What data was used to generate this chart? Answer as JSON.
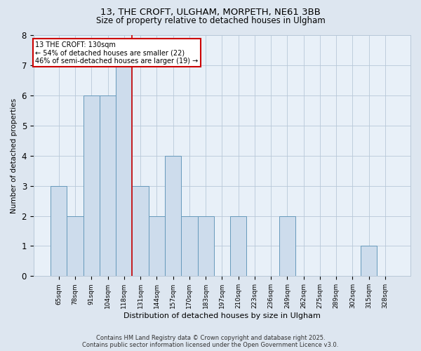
{
  "title1": "13, THE CROFT, ULGHAM, MORPETH, NE61 3BB",
  "title2": "Size of property relative to detached houses in Ulgham",
  "xlabel": "Distribution of detached houses by size in Ulgham",
  "ylabel": "Number of detached properties",
  "categories": [
    "65sqm",
    "78sqm",
    "91sqm",
    "104sqm",
    "118sqm",
    "131sqm",
    "144sqm",
    "157sqm",
    "170sqm",
    "183sqm",
    "197sqm",
    "210sqm",
    "223sqm",
    "236sqm",
    "249sqm",
    "262sqm",
    "275sqm",
    "289sqm",
    "302sqm",
    "315sqm",
    "328sqm"
  ],
  "values": [
    3,
    2,
    6,
    6,
    7,
    3,
    2,
    4,
    2,
    2,
    0,
    2,
    0,
    0,
    2,
    0,
    0,
    0,
    0,
    1,
    0
  ],
  "highlight_index": 4,
  "bar_color": "#cddcec",
  "bar_edge_color": "#6699bb",
  "highlight_line_color": "#cc0000",
  "annotation_text": "13 THE CROFT: 130sqm\n← 54% of detached houses are smaller (22)\n46% of semi-detached houses are larger (19) →",
  "annotation_box_color": "#ffffff",
  "annotation_box_edge_color": "#cc0000",
  "ylim": [
    0,
    8
  ],
  "yticks": [
    0,
    1,
    2,
    3,
    4,
    5,
    6,
    7,
    8
  ],
  "footer": "Contains HM Land Registry data © Crown copyright and database right 2025.\nContains public sector information licensed under the Open Government Licence v3.0.",
  "bg_color": "#dde6f0",
  "plot_bg_color": "#e8f0f8",
  "grid_color": "#b8c8d8"
}
